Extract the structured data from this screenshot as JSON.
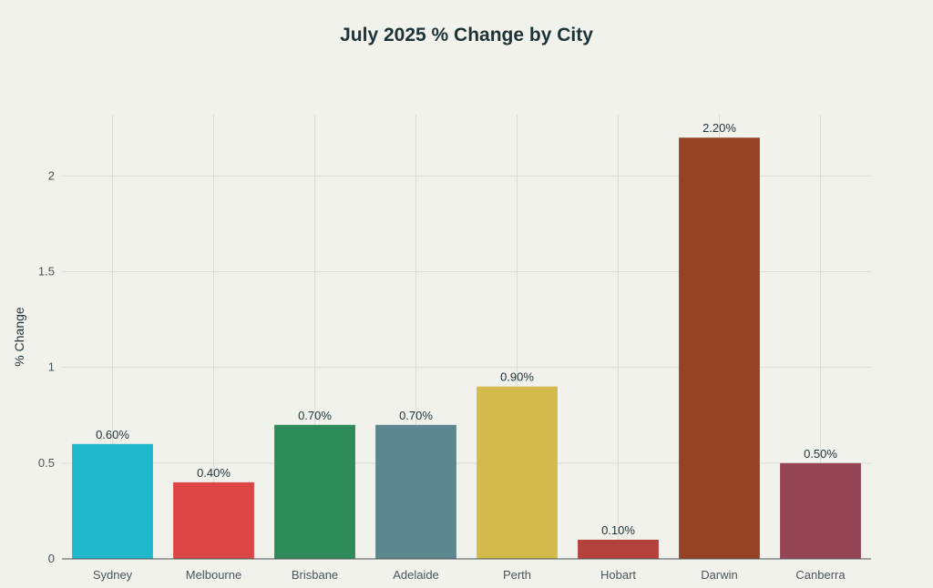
{
  "chart_data": {
    "type": "bar",
    "title": "July 2025 % Change by City",
    "xlabel": "",
    "ylabel": "% Change",
    "categories": [
      "Sydney",
      "Melbourne",
      "Brisbane",
      "Adelaide",
      "Perth",
      "Hobart",
      "Darwin",
      "Canberra"
    ],
    "values": [
      0.6,
      0.4,
      0.7,
      0.7,
      0.9,
      0.1,
      2.2,
      0.5
    ],
    "data_labels": [
      "0.60%",
      "0.40%",
      "0.70%",
      "0.70%",
      "0.90%",
      "0.10%",
      "2.20%",
      "0.50%"
    ],
    "colors": [
      "#1fb8cd",
      "#db4545",
      "#2e8b57",
      "#5d878f",
      "#d2ba4c",
      "#b4413c",
      "#964325",
      "#944454"
    ],
    "ylim": [
      0,
      2.32
    ],
    "yticks": [
      0,
      0.5,
      1,
      1.5,
      2
    ],
    "ytick_labels": [
      "0",
      "0.5",
      "1",
      "1.5",
      "2"
    ],
    "grid": true,
    "legend": "none"
  }
}
